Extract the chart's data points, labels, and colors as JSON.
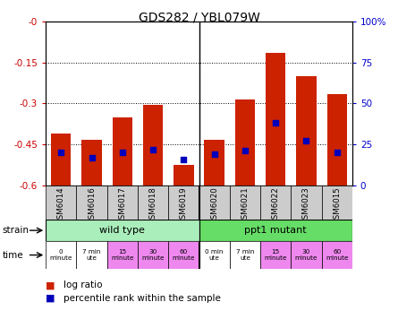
{
  "title": "GDS282 / YBL079W",
  "samples": [
    "GSM6014",
    "GSM6016",
    "GSM6017",
    "GSM6018",
    "GSM6019",
    "GSM6020",
    "GSM6021",
    "GSM6022",
    "GSM6023",
    "GSM6015"
  ],
  "log_ratio": [
    -0.41,
    -0.435,
    -0.35,
    -0.305,
    -0.525,
    -0.435,
    -0.285,
    -0.115,
    -0.2,
    -0.265
  ],
  "percentile_rank": [
    20,
    17,
    20,
    22,
    16,
    19,
    21,
    38,
    27,
    20
  ],
  "ylim_left": [
    -0.6,
    0.0
  ],
  "ylim_right": [
    0,
    100
  ],
  "yticks_left": [
    -0.6,
    -0.45,
    -0.3,
    -0.15,
    0.0
  ],
  "yticks_right": [
    0,
    25,
    50,
    75,
    100
  ],
  "ytick_labels_left": [
    "-0.6",
    "-0.45",
    "-0.3",
    "-0.15",
    "-0"
  ],
  "ytick_labels_right": [
    "0",
    "25",
    "50",
    "75",
    "100%"
  ],
  "bar_color": "#cc2200",
  "dot_color": "#0000bb",
  "strain_wild": "wild type",
  "strain_mutant": "ppt1 mutant",
  "strain_wild_color": "#aaeebb",
  "strain_mutant_color": "#66dd66",
  "time_display": [
    [
      "0\nminute",
      "#ffffff"
    ],
    [
      "7 min\nute",
      "#ffffff"
    ],
    [
      "15\nminute",
      "#ee88ee"
    ],
    [
      "30\nminute",
      "#ee88ee"
    ],
    [
      "60\nminute",
      "#ee88ee"
    ],
    [
      "0 min\nute",
      "#ffffff"
    ],
    [
      "7 min\nute",
      "#ffffff"
    ],
    [
      "15\nminute",
      "#ee88ee"
    ],
    [
      "30\nminute",
      "#ee88ee"
    ],
    [
      "60\nminute",
      "#ee88ee"
    ]
  ],
  "tick_label_color_left": "#cc0000",
  "tick_label_color_right": "#0000cc",
  "legend_log_ratio": "log ratio",
  "legend_percentile": "percentile rank within the sample",
  "sample_bg_color": "#cccccc"
}
